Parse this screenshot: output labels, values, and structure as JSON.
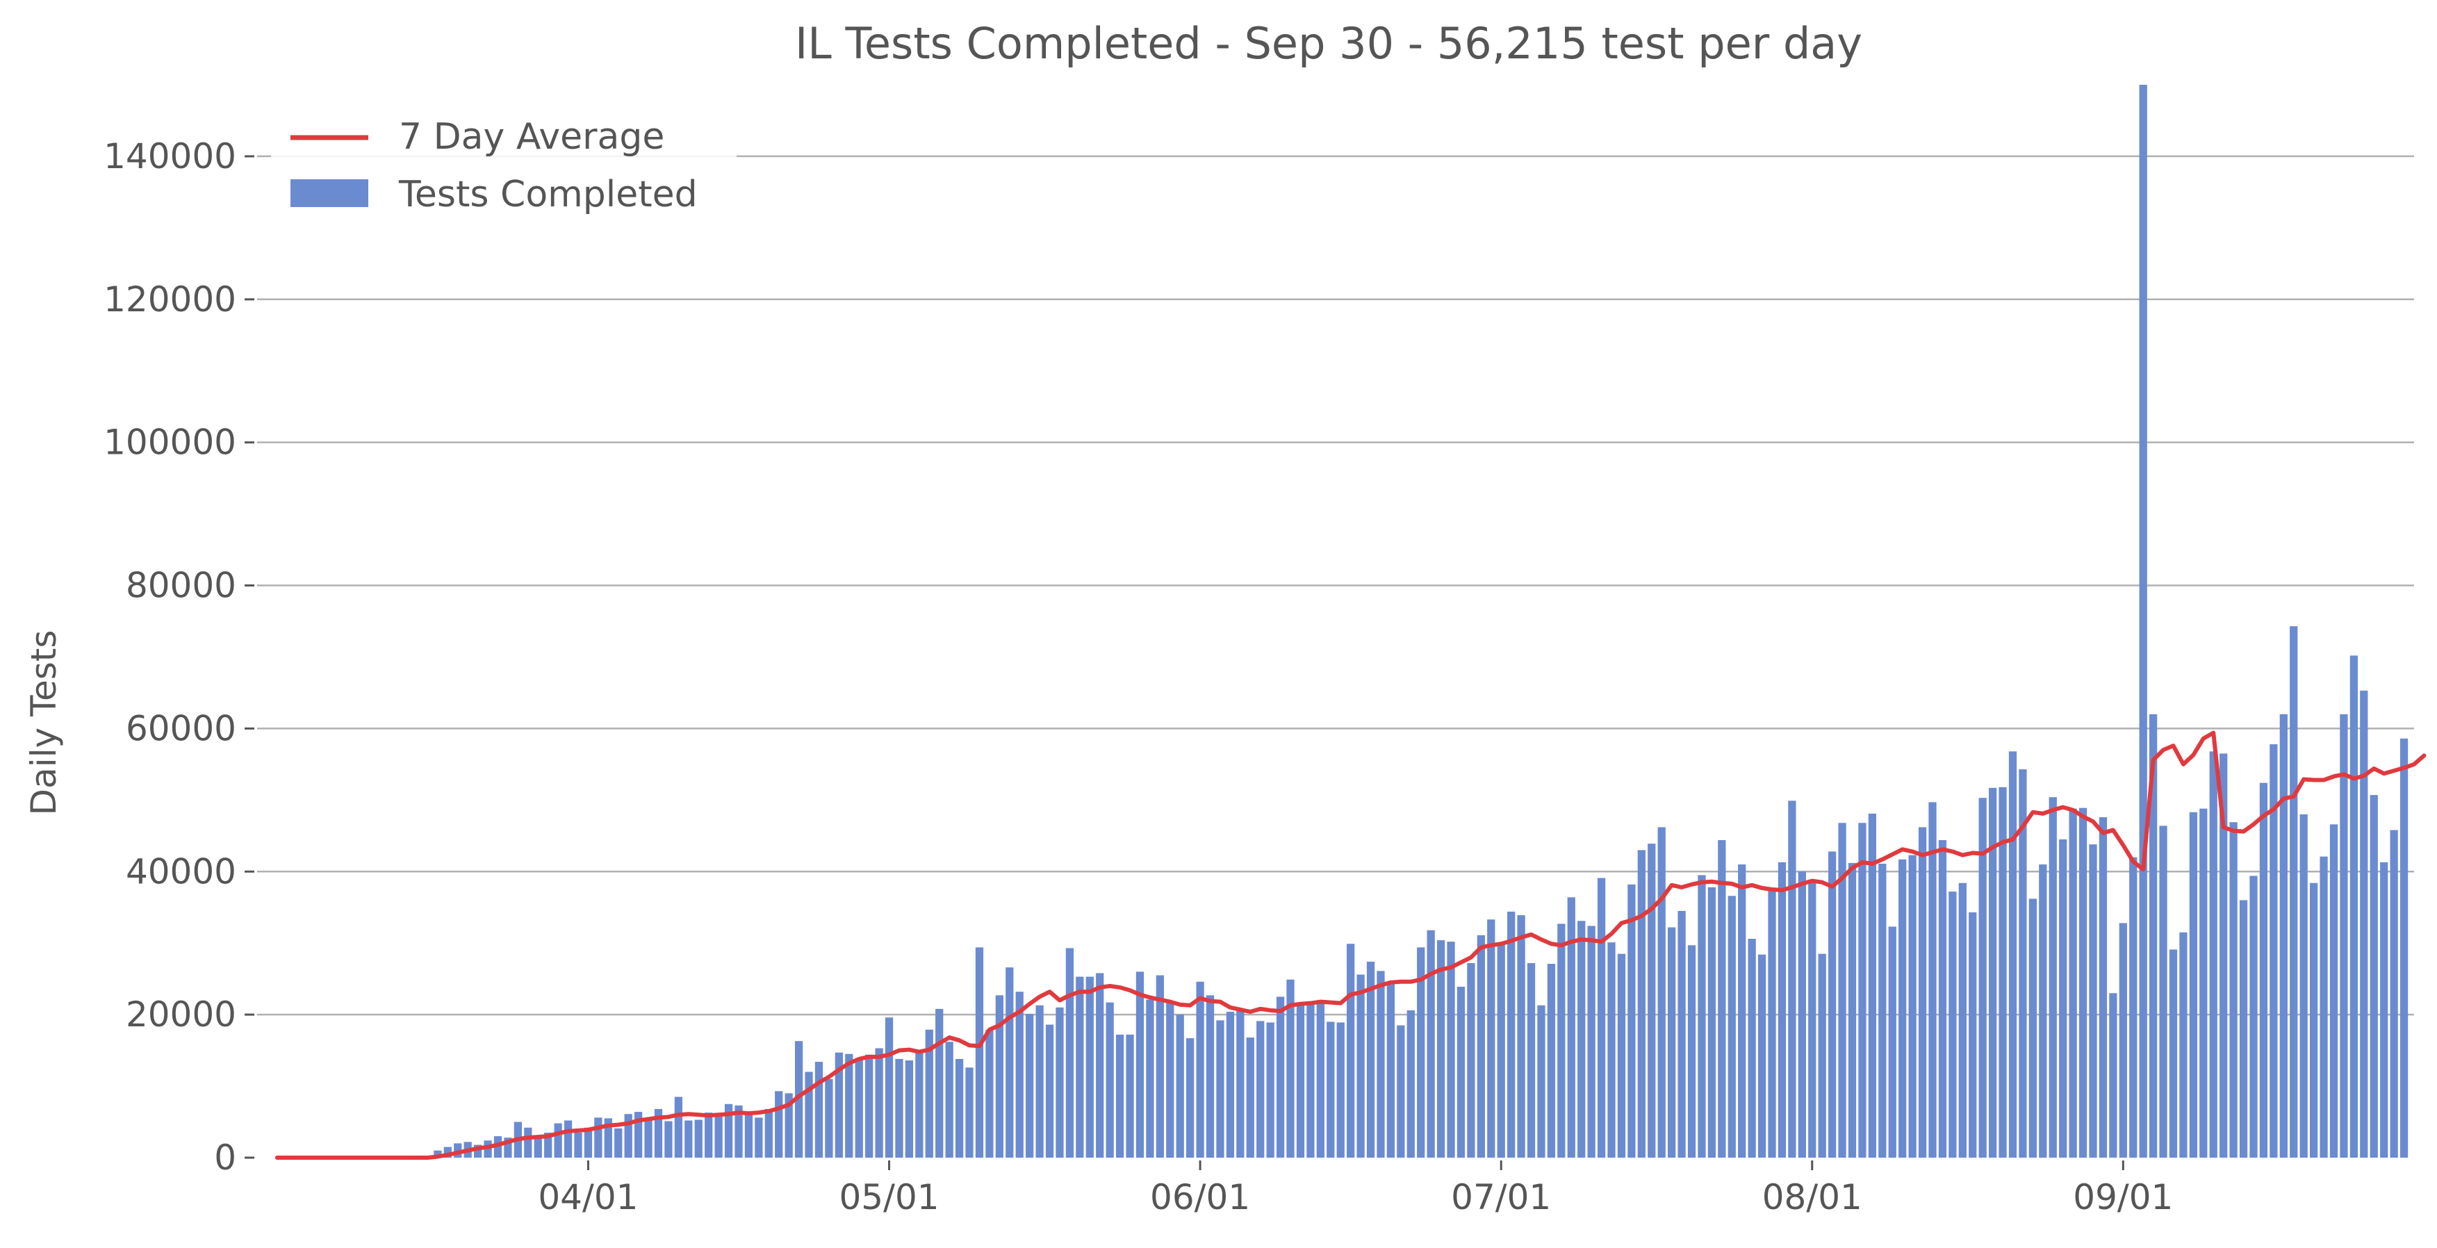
{
  "chart_data": {
    "type": "bar",
    "title": "IL Tests Completed - Sep 30 - 56,215 test per day",
    "ylabel": "Daily Tests",
    "xlabel": "",
    "ylim": [
      0,
      150000
    ],
    "x_range": [
      "2020-02-28",
      "2020-09-30"
    ],
    "grid": "horizontal",
    "legend_position": "top-left",
    "yticks": [
      {
        "value": 0,
        "label": "0"
      },
      {
        "value": 20000,
        "label": "20000"
      },
      {
        "value": 40000,
        "label": "40000"
      },
      {
        "value": 60000,
        "label": "60000"
      },
      {
        "value": 80000,
        "label": "80000"
      },
      {
        "value": 100000,
        "label": "100000"
      },
      {
        "value": 120000,
        "label": "120000"
      },
      {
        "value": 140000,
        "label": "140000"
      }
    ],
    "xticks": [
      {
        "date": "2020-04-01",
        "label": "04/01"
      },
      {
        "date": "2020-05-01",
        "label": "05/01"
      },
      {
        "date": "2020-06-01",
        "label": "06/01"
      },
      {
        "date": "2020-07-01",
        "label": "07/01"
      },
      {
        "date": "2020-08-01",
        "label": "08/01"
      },
      {
        "date": "2020-09-01",
        "label": "09/01"
      }
    ],
    "legend": {
      "line": "7 Day Average",
      "bar": "Tests Completed"
    },
    "colors": {
      "bar": "#6b8bd0",
      "line": "#e03a3e",
      "grid": "#b0b0b0",
      "text": "#555555"
    },
    "start_date": "2020-03-01",
    "series": [
      {
        "name": "Tests Completed",
        "type": "bar",
        "values": [
          0,
          0,
          0,
          0,
          0,
          0,
          0,
          0,
          0,
          0,
          0,
          0,
          0,
          0,
          0,
          0,
          1000,
          1500,
          2000,
          2200,
          1800,
          2400,
          3000,
          2800,
          5000,
          4200,
          3000,
          3500,
          4800,
          5200,
          3500,
          4200,
          5600,
          5500,
          4100,
          6100,
          6400,
          5300,
          6800,
          5100,
          8500,
          5200,
          5300,
          6300,
          6200,
          7500,
          7300,
          6200,
          5600,
          6800,
          9300,
          9000,
          16300,
          12000,
          13400,
          11000,
          14700,
          14500,
          13900,
          14400,
          15300,
          19600,
          13800,
          13600,
          15000,
          17900,
          20800,
          16200,
          13800,
          12600,
          29400,
          17900,
          22700,
          26600,
          23200,
          20100,
          21300,
          18600,
          21000,
          29300,
          25300,
          25300,
          25800,
          21700,
          17200,
          17200,
          26000,
          22100,
          25500,
          21700,
          20000,
          16700,
          24600,
          22700,
          19200,
          20400,
          20500,
          16800,
          19100,
          18900,
          22500,
          24900,
          21400,
          21800,
          21600,
          19000,
          18900,
          29900,
          25600,
          27400,
          26100,
          24600,
          18500,
          20600,
          29400,
          31800,
          30400,
          30200,
          23900,
          27200,
          31100,
          33300,
          30100,
          34400,
          33900,
          27200,
          21300,
          27100,
          32700,
          36400,
          33100,
          32400,
          39100,
          30100,
          28500,
          38200,
          43000,
          43900,
          46200,
          32200,
          34500,
          29700,
          39500,
          37800,
          44400,
          36600,
          41000,
          30600,
          28400,
          37600,
          41300,
          49900,
          40000,
          38500,
          28500,
          42800,
          46800,
          41200,
          46800,
          48100,
          41100,
          32300,
          41700,
          42300,
          46200,
          49700,
          44400,
          37200,
          38400,
          34300,
          50300,
          51700,
          51800,
          56800,
          54300,
          36200,
          41000,
          50400,
          44500,
          48800,
          48900,
          43800,
          47600,
          23000,
          32800,
          42000,
          150000,
          62000,
          46400,
          29100,
          31500,
          48300,
          48800,
          56800,
          56500,
          46900,
          36000,
          39400,
          52400,
          57800,
          62000,
          74300,
          48000,
          38400,
          42100,
          46600,
          62000,
          70200,
          65300,
          50700,
          41300,
          45800,
          58600
        ]
      },
      {
        "name": "7 Day Average",
        "type": "line",
        "values": [
          0,
          0,
          0,
          0,
          0,
          0,
          0,
          0,
          0,
          0,
          0,
          0,
          0,
          0,
          0,
          0,
          150,
          400,
          700,
          1000,
          1300,
          1500,
          1800,
          2200,
          2600,
          2800,
          2900,
          3000,
          3400,
          3700,
          3800,
          3900,
          4200,
          4500,
          4600,
          4800,
          5200,
          5400,
          5600,
          5700,
          6000,
          6100,
          6000,
          5900,
          6000,
          6100,
          6300,
          6200,
          6300,
          6500,
          6900,
          7400,
          8600,
          9500,
          10500,
          11300,
          12300,
          13200,
          13800,
          14100,
          14100,
          14400,
          15000,
          15100,
          14800,
          15100,
          16000,
          16800,
          16400,
          15700,
          15600,
          17900,
          18500,
          19600,
          20400,
          21500,
          22500,
          23200,
          22000,
          22700,
          23200,
          23200,
          23800,
          24000,
          23800,
          23400,
          22800,
          22400,
          22100,
          21800,
          21400,
          21300,
          22300,
          21900,
          21800,
          21000,
          20700,
          20400,
          20800,
          20600,
          20500,
          21300,
          21500,
          21600,
          21800,
          21700,
          21600,
          22800,
          23100,
          23600,
          24100,
          24500,
          24600,
          24600,
          24900,
          25700,
          26300,
          26600,
          27300,
          28000,
          29400,
          29700,
          29900,
          30300,
          30800,
          31200,
          30500,
          29900,
          29700,
          30200,
          30500,
          30400,
          30200,
          31300,
          32800,
          33200,
          33800,
          34800,
          36200,
          38100,
          37800,
          38200,
          38500,
          38600,
          38400,
          38300,
          37800,
          38100,
          37700,
          37500,
          37400,
          37800,
          38300,
          38700,
          38500,
          37900,
          39100,
          40500,
          41300,
          41100,
          41700,
          42400,
          43100,
          42800,
          42300,
          42700,
          43100,
          42800,
          42300,
          42600,
          42500,
          43400,
          44100,
          44500,
          46300,
          48300,
          48100,
          48600,
          49000,
          48600,
          47700,
          47000,
          45400,
          45800,
          43700,
          41400,
          40300,
          55600,
          57000,
          57600,
          55000,
          56300,
          58600,
          59400,
          46200,
          45700,
          45600,
          46600,
          47800,
          48700,
          50200,
          50500,
          52900,
          52800,
          52800,
          53300,
          53600,
          53000,
          53400,
          54400,
          53700,
          54100,
          54500,
          55000,
          56215
        ]
      }
    ]
  }
}
